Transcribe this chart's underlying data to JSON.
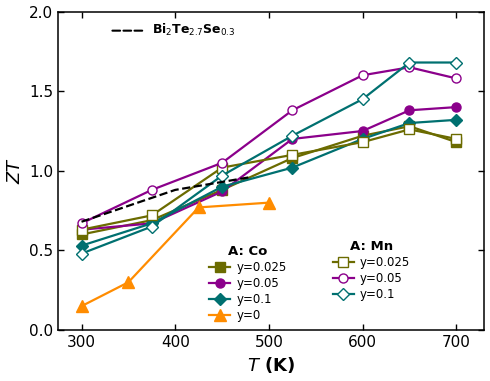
{
  "xlabel": "$T$ (K)",
  "ylabel": "$ZT$",
  "xlim": [
    275,
    730
  ],
  "ylim": [
    0.0,
    2.0
  ],
  "xticks": [
    300,
    400,
    500,
    600,
    700
  ],
  "yticks": [
    0.0,
    0.5,
    1.0,
    1.5,
    2.0
  ],
  "bi_ref": {
    "T": [
      300,
      350,
      400,
      450,
      480
    ],
    "ZT": [
      0.68,
      0.78,
      0.88,
      0.93,
      0.96
    ],
    "color": "#000000",
    "linestyle": "--"
  },
  "Co_y0.025": {
    "T": [
      300,
      375,
      450,
      525,
      600,
      650,
      700
    ],
    "ZT": [
      0.6,
      0.69,
      0.88,
      1.08,
      1.22,
      1.28,
      1.18
    ],
    "color": "#6B6B00",
    "marker": "s",
    "filled": true
  },
  "Co_y0.05": {
    "T": [
      300,
      375,
      450,
      525,
      600,
      650,
      700
    ],
    "ZT": [
      0.63,
      0.67,
      0.87,
      1.2,
      1.25,
      1.38,
      1.4
    ],
    "color": "#8B008B",
    "marker": "o",
    "filled": true
  },
  "Co_y0.1": {
    "T": [
      300,
      375,
      450,
      525,
      600,
      650,
      700
    ],
    "ZT": [
      0.53,
      0.67,
      0.9,
      1.02,
      1.2,
      1.3,
      1.32
    ],
    "color": "#007070",
    "marker": "D",
    "filled": true
  },
  "Co_y0": {
    "T": [
      300,
      350,
      425,
      500
    ],
    "ZT": [
      0.15,
      0.3,
      0.77,
      0.8
    ],
    "color": "#FF8C00",
    "marker": "^",
    "filled": true
  },
  "Mn_y0.025": {
    "T": [
      300,
      375,
      450,
      525,
      600,
      650,
      700
    ],
    "ZT": [
      0.63,
      0.72,
      1.02,
      1.1,
      1.18,
      1.26,
      1.2
    ],
    "color": "#6B6B00",
    "marker": "s",
    "filled": false
  },
  "Mn_y0.05": {
    "T": [
      300,
      375,
      450,
      525,
      600,
      650,
      700
    ],
    "ZT": [
      0.67,
      0.88,
      1.05,
      1.38,
      1.6,
      1.65,
      1.58
    ],
    "color": "#8B008B",
    "marker": "o",
    "filled": false
  },
  "Mn_y0.1": {
    "T": [
      300,
      375,
      450,
      525,
      600,
      650,
      700
    ],
    "ZT": [
      0.48,
      0.65,
      0.97,
      1.22,
      1.45,
      1.68,
      1.68
    ],
    "color": "#007070",
    "marker": "D",
    "filled": false
  },
  "olive": "#6B6B00",
  "purple": "#8B008B",
  "teal": "#007070",
  "orange": "#FF8C00",
  "ms": 6.5,
  "lw": 1.6,
  "background_color": "white"
}
